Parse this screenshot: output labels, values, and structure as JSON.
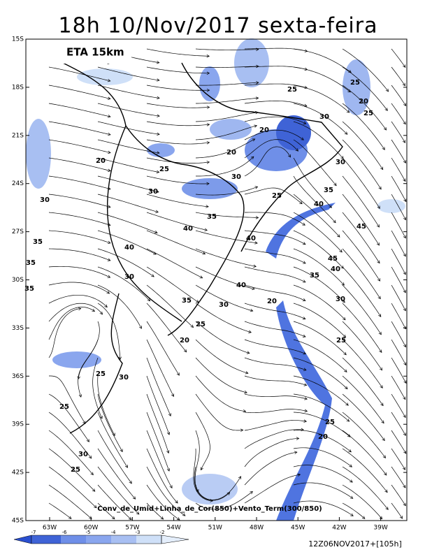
{
  "title": "18h 10/Nov/2017 sexta-feira",
  "model": "ETA 15km",
  "caption": "Conv_de_Umid+Linha_de_Cor(850)+Vento_Term(300/850)",
  "run": "12Z06NOV2017+[105h]",
  "lat_labels": [
    "15S",
    "18S",
    "21S",
    "24S",
    "27S",
    "30S",
    "33S",
    "36S",
    "39S",
    "42S",
    "45S"
  ],
  "lon_labels": [
    "63W",
    "60W",
    "57W",
    "54W",
    "51W",
    "48W",
    "45W",
    "42W",
    "39W"
  ],
  "colorbar_labels": [
    "-7",
    "-6",
    "-5",
    "-4",
    "-3",
    "-2"
  ],
  "contour_labels": [
    "25",
    "20",
    "25",
    "25",
    "20",
    "30",
    "20",
    "20",
    "25",
    "30",
    "25",
    "30",
    "35",
    "40",
    "30",
    "30",
    "35",
    "40",
    "40",
    "45",
    "35",
    "40",
    "45",
    "40",
    "35",
    "35",
    "30",
    "35",
    "40",
    "35",
    "30",
    "20",
    "30",
    "25",
    "20",
    "25",
    "25",
    "30",
    "25",
    "25",
    "20",
    "30",
    "25"
  ]
}
